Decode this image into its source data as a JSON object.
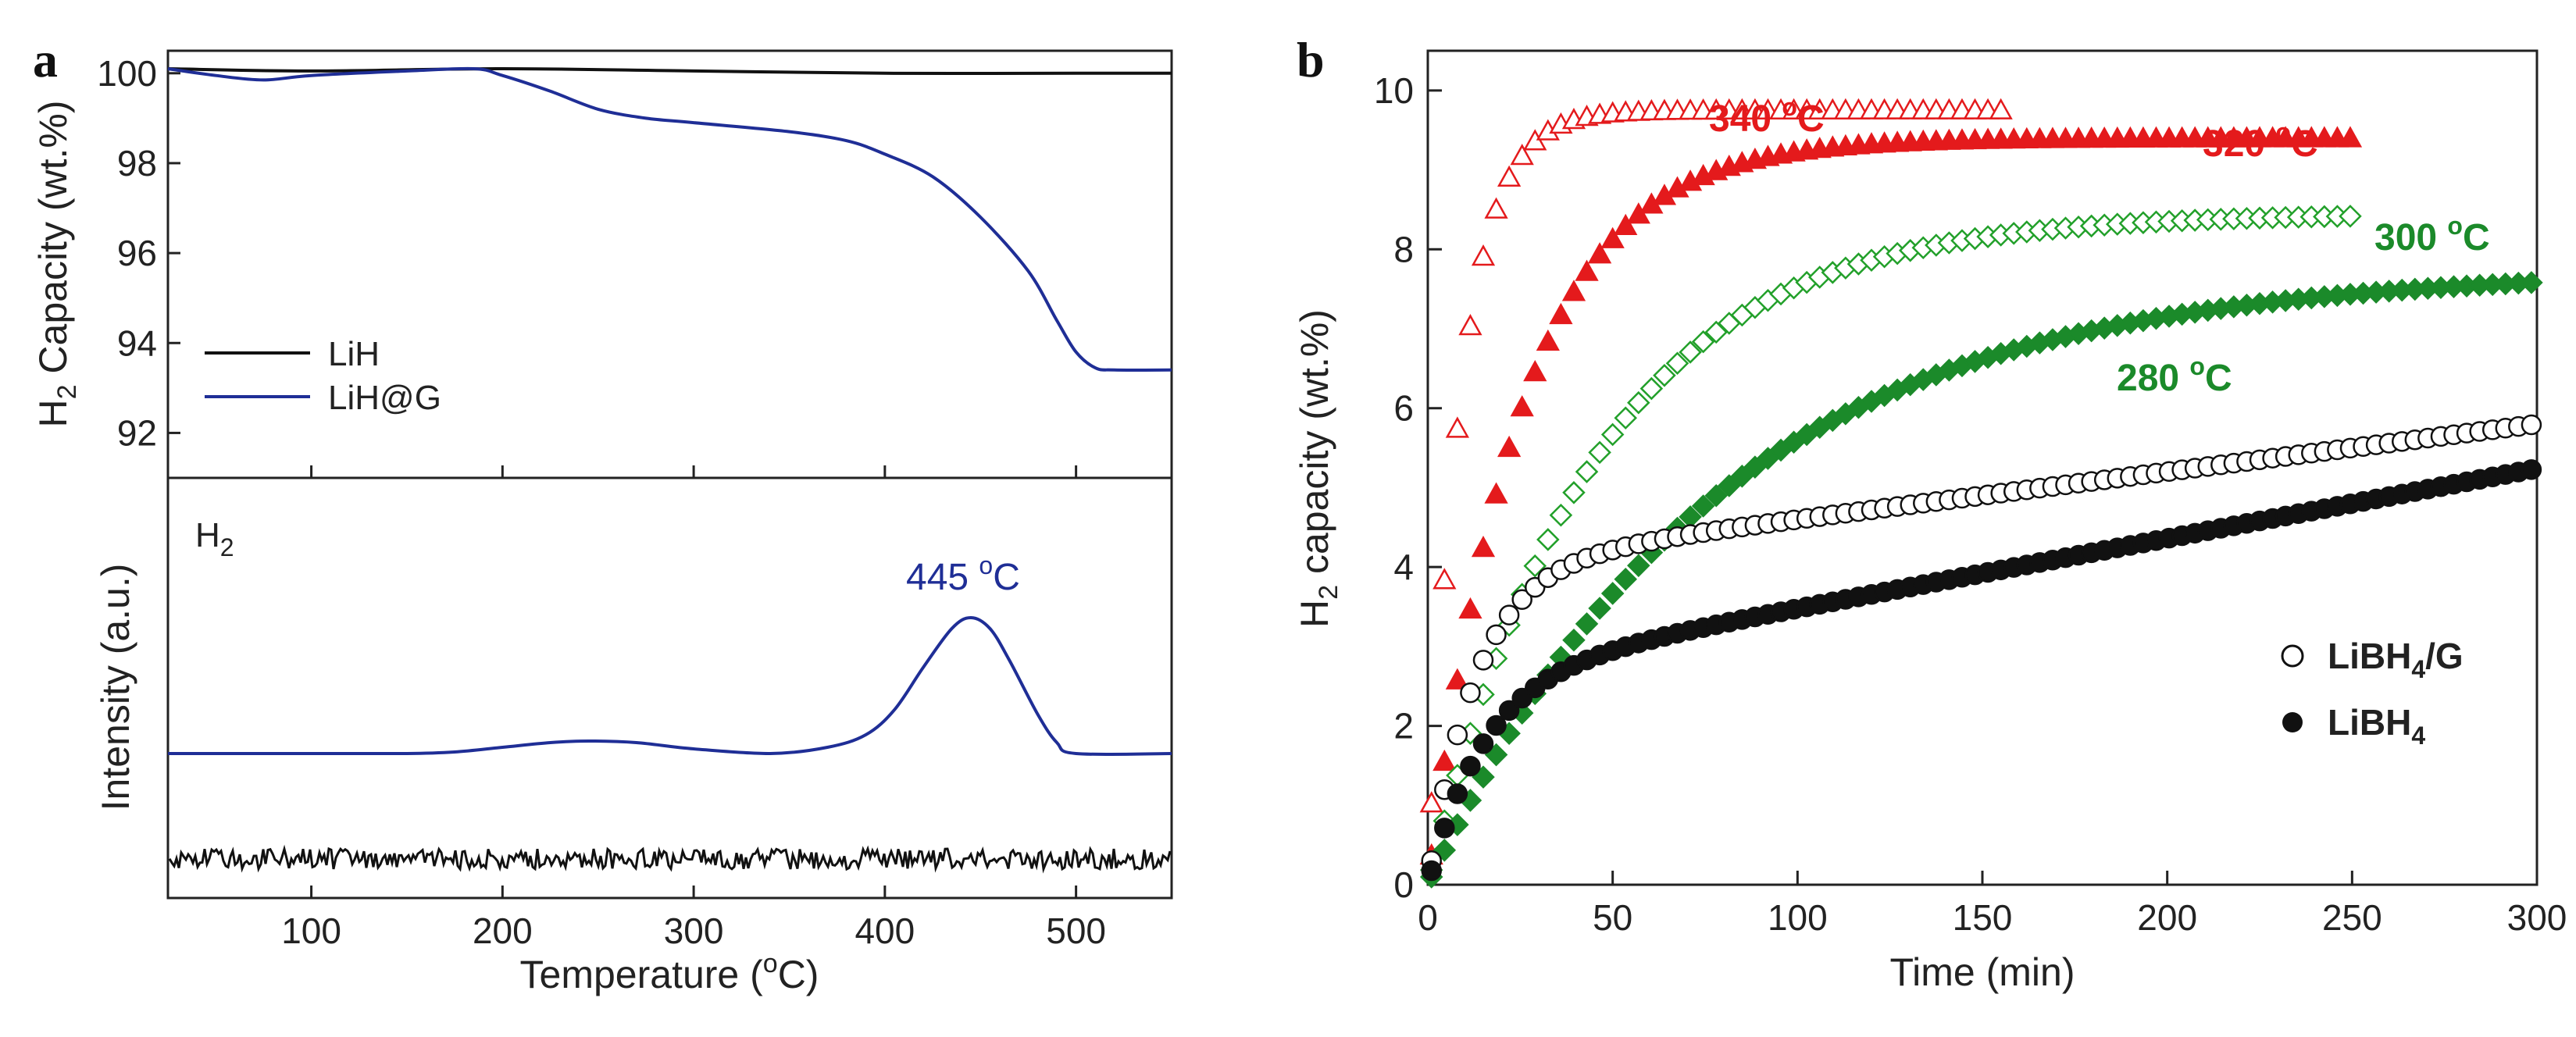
{
  "chart_data": [
    {
      "panel": "a",
      "type": "line",
      "xlabel": "Temperature (°C)",
      "xlim": [
        25,
        550
      ],
      "xticks": [
        100,
        200,
        300,
        400,
        500
      ],
      "top": {
        "ylabel": "H2 Capacity (wt.%)",
        "ylim": [
          91,
          100.5
        ],
        "yticks": [
          92,
          94,
          96,
          98,
          100
        ],
        "legend_position": "center-left",
        "series": [
          {
            "name": "LiH",
            "color": "#111111",
            "x": [
              25,
              100,
              200,
              300,
              400,
              500,
              550
            ],
            "y": [
              100.1,
              100.05,
              100.1,
              100.05,
              100.0,
              100.0,
              100.0
            ]
          },
          {
            "name": "LiH@G",
            "color": "#1f2e96",
            "x": [
              25,
              50,
              75,
              100,
              150,
              185,
              200,
              225,
              250,
              275,
              300,
              350,
              380,
              400,
              425,
              450,
              475,
              490,
              500,
              510,
              520,
              550
            ],
            "y": [
              100.1,
              99.95,
              99.85,
              99.95,
              100.05,
              100.1,
              99.95,
              99.6,
              99.2,
              99.0,
              98.9,
              98.7,
              98.5,
              98.2,
              97.7,
              96.8,
              95.6,
              94.5,
              93.8,
              93.45,
              93.4,
              93.4
            ]
          }
        ]
      },
      "bottom": {
        "ylabel": "Intensity (a.u.)",
        "gas_label": "H2",
        "peak_label": "445 °C",
        "series": [
          {
            "name": "LiH@G",
            "color": "#1f2e96",
            "x": [
              25,
              100,
              150,
              175,
              200,
              225,
              245,
              270,
              300,
              340,
              370,
              390,
              405,
              420,
              435,
              445,
              455,
              465,
              480,
              490,
              500,
              550
            ],
            "y": [
              0.0,
              0.0,
              0.0,
              0.01,
              0.04,
              0.07,
              0.08,
              0.07,
              0.03,
              0.0,
              0.04,
              0.12,
              0.28,
              0.55,
              0.8,
              0.87,
              0.8,
              0.6,
              0.25,
              0.07,
              0.0,
              0.0
            ]
          },
          {
            "name": "LiH",
            "color": "#111111",
            "noise": true,
            "x": [
              25,
              550
            ],
            "y": [
              -0.85,
              -0.85
            ]
          }
        ]
      }
    },
    {
      "panel": "b",
      "type": "scatter",
      "xlabel": "Time (min)",
      "ylabel": "H2 capacity (wt.%)",
      "xlim": [
        0,
        300
      ],
      "ylim": [
        0,
        10.5
      ],
      "xticks": [
        0,
        50,
        100,
        150,
        200,
        250,
        300
      ],
      "yticks": [
        0,
        2,
        4,
        6,
        8,
        10
      ],
      "legend_position": "bottom-right",
      "series": [
        {
          "name": "340 °C",
          "marker": "triangle-open",
          "color": "#e41a1c",
          "kinetics": {
            "max": 9.75,
            "tau": 9,
            "end": 155,
            "step": 3.5
          },
          "label": "340 °C"
        },
        {
          "name": "320 °C",
          "marker": "triangle-filled",
          "color": "#e41a1c",
          "kinetics": {
            "max": 9.4,
            "tau": 25,
            "end": 250,
            "step": 3.5
          },
          "label": "320 °C"
        },
        {
          "name": "300 °C",
          "marker": "diamond-open",
          "color": "#22a02a",
          "kinetics": {
            "max": 8.45,
            "tau": 45,
            "end": 250,
            "step": 3.5
          },
          "label": "300 °C"
        },
        {
          "name": "280 °C",
          "marker": "diamond-filled",
          "color": "#1b8a2a",
          "kinetics": {
            "max": 7.75,
            "tau": 78,
            "end": 300,
            "step": 3.5
          },
          "label": "280 °C"
        },
        {
          "name": "LiBH4/G",
          "marker": "circle-open",
          "color": "#111111",
          "kinetics": {
            "a": 4.0,
            "tau": 13,
            "b": 0.006,
            "end": 300,
            "step": 3.5
          },
          "label": "LiBH4/G"
        },
        {
          "name": "LiBH4",
          "marker": "circle-filled",
          "color": "#111111",
          "kinetics": {
            "a": 2.6,
            "tau": 15,
            "b": 0.0088,
            "end": 300,
            "step": 3.5
          },
          "label": "LiBH4"
        }
      ]
    }
  ],
  "labels": {
    "panel_a": "a",
    "panel_b": "b",
    "a_ylabel_top_pre": "H",
    "a_ylabel_top_sub": "2",
    "a_ylabel_top_post": " Capacity (wt.%)",
    "a_ylabel_bottom": "Intensity (a.u.)",
    "a_xlabel_pre": "Temperature (",
    "a_xlabel_deg": "o",
    "a_xlabel_post": "C)",
    "a_gas_pre": "H",
    "a_gas_sub": "2",
    "a_peak_num": "445 ",
    "a_peak_deg": "o",
    "a_peak_unit": "C",
    "a_legend_lih": "LiH",
    "a_legend_lihg": "LiH@G",
    "b_ylabel_pre": "H",
    "b_ylabel_sub": "2",
    "b_ylabel_post": " capacity (wt.%)",
    "b_xlabel": "Time (min)",
    "b_t340": "340 ",
    "b_t320": "320 ",
    "b_t300": "300 ",
    "b_t280": "280 ",
    "deg": "o",
    "unit_c": "C",
    "b_leg1_pre": "LiBH",
    "b_leg1_sub": "4",
    "b_leg1_post": "/G",
    "b_leg2_pre": "LiBH",
    "b_leg2_sub": "4"
  },
  "ticks": {
    "a_x": [
      "100",
      "200",
      "300",
      "400",
      "500"
    ],
    "a_y": [
      "92",
      "94",
      "96",
      "98",
      "100"
    ],
    "b_x": [
      "0",
      "50",
      "100",
      "150",
      "200",
      "250",
      "300"
    ],
    "b_y": [
      "0",
      "2",
      "4",
      "6",
      "8",
      "10"
    ]
  }
}
